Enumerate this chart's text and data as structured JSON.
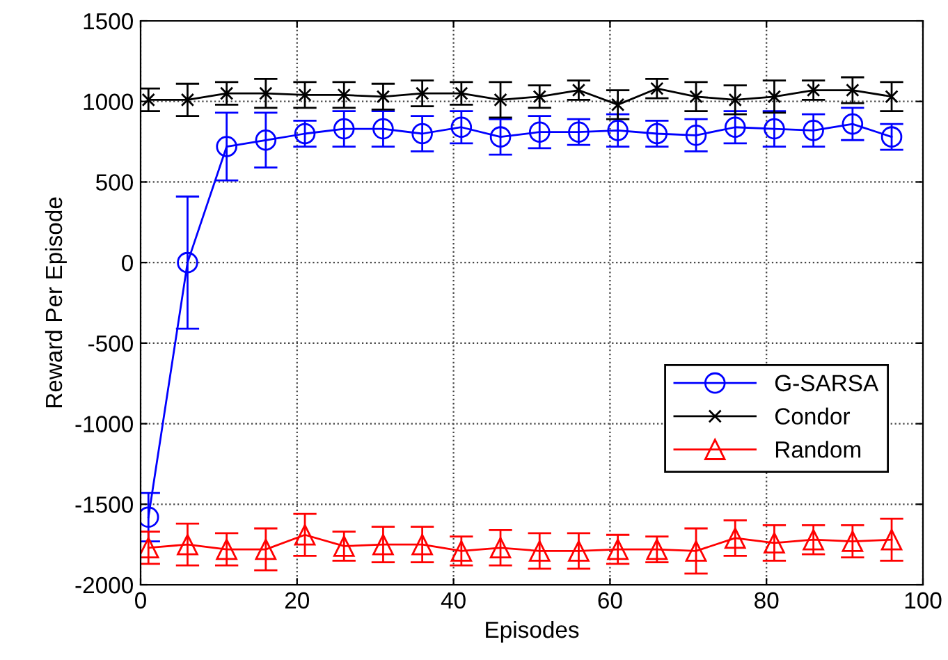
{
  "chart_data": {
    "type": "line",
    "xlabel": "Episodes",
    "ylabel": "Reward Per Episode",
    "x": [
      1,
      6,
      11,
      16,
      21,
      26,
      31,
      36,
      41,
      46,
      51,
      56,
      61,
      66,
      71,
      76,
      81,
      86,
      91,
      96
    ],
    "series": [
      {
        "name": "G-SARSA",
        "color": "#0000ff",
        "marker": "circle",
        "values": [
          -1580,
          0,
          720,
          760,
          800,
          830,
          830,
          800,
          840,
          780,
          810,
          810,
          820,
          800,
          790,
          840,
          830,
          820,
          860,
          780
        ],
        "errors": [
          150,
          410,
          210,
          170,
          80,
          110,
          110,
          110,
          100,
          110,
          100,
          80,
          100,
          80,
          100,
          100,
          110,
          100,
          100,
          80
        ]
      },
      {
        "name": "Condor",
        "color": "#000000",
        "marker": "cross",
        "values": [
          1010,
          1010,
          1050,
          1050,
          1040,
          1040,
          1030,
          1050,
          1050,
          1010,
          1030,
          1070,
          980,
          1080,
          1030,
          1010,
          1030,
          1070,
          1070,
          1030
        ],
        "errors": [
          70,
          100,
          70,
          90,
          80,
          80,
          80,
          80,
          70,
          110,
          70,
          60,
          90,
          60,
          90,
          90,
          100,
          60,
          80,
          90
        ]
      },
      {
        "name": "Random",
        "color": "#ff0000",
        "marker": "triangle",
        "values": [
          -1770,
          -1750,
          -1780,
          -1780,
          -1690,
          -1760,
          -1750,
          -1750,
          -1790,
          -1770,
          -1790,
          -1790,
          -1780,
          -1780,
          -1790,
          -1710,
          -1740,
          -1720,
          -1730,
          -1720
        ],
        "errors": [
          100,
          130,
          100,
          130,
          130,
          90,
          110,
          110,
          90,
          110,
          110,
          110,
          90,
          80,
          140,
          110,
          110,
          90,
          100,
          130
        ]
      }
    ],
    "xlim": [
      0,
      100
    ],
    "xticks": [
      0,
      20,
      40,
      60,
      80,
      100
    ],
    "ylim": [
      -2000,
      1500
    ],
    "yticks": [
      -2000,
      -1500,
      -1000,
      -500,
      0,
      500,
      1000,
      1500
    ],
    "grid": true,
    "legend": "lower right"
  }
}
